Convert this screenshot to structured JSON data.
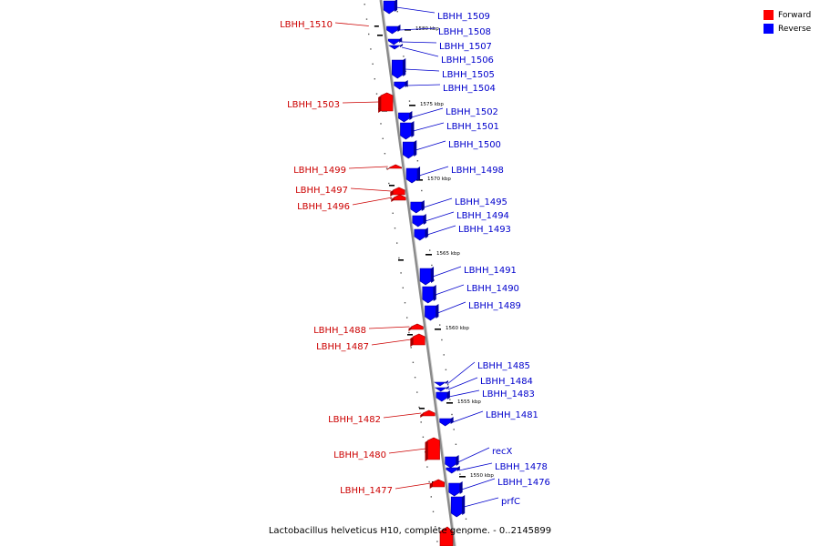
{
  "title": "Lactobacillus helveticus H10, complete genome. - 0..2145899",
  "legend": [
    {
      "label": "Forward",
      "color": "#ff0000"
    },
    {
      "label": "Reverse",
      "color": "#0000ff"
    }
  ],
  "colors": {
    "forward": "#ff0000",
    "reverse": "#0000ff",
    "forward_label": "#cc0000",
    "reverse_label": "#0000cc",
    "backbone": "#8a8a8a"
  },
  "ruler": [
    {
      "label": "1580 kbp"
    },
    {
      "label": "1575 kbp"
    },
    {
      "label": "1570 kbp"
    },
    {
      "label": "1565 kbp"
    },
    {
      "label": "1560 kbp"
    },
    {
      "label": "1555 kbp"
    },
    {
      "label": "1550 kbp"
    }
  ],
  "genes_reverse": [
    {
      "name": "LBHH_1509"
    },
    {
      "name": "LBHH_1508"
    },
    {
      "name": "LBHH_1507"
    },
    {
      "name": "LBHH_1506"
    },
    {
      "name": "LBHH_1505"
    },
    {
      "name": "LBHH_1504"
    },
    {
      "name": "LBHH_1502"
    },
    {
      "name": "LBHH_1501"
    },
    {
      "name": "LBHH_1500"
    },
    {
      "name": "LBHH_1498"
    },
    {
      "name": "LBHH_1495"
    },
    {
      "name": "LBHH_1494"
    },
    {
      "name": "LBHH_1493"
    },
    {
      "name": "LBHH_1491"
    },
    {
      "name": "LBHH_1490"
    },
    {
      "name": "LBHH_1489"
    },
    {
      "name": "LBHH_1485"
    },
    {
      "name": "LBHH_1484"
    },
    {
      "name": "LBHH_1483"
    },
    {
      "name": "LBHH_1481"
    },
    {
      "name": "recX"
    },
    {
      "name": "LBHH_1478"
    },
    {
      "name": "LBHH_1476"
    },
    {
      "name": "prfC"
    }
  ],
  "genes_forward": [
    {
      "name": "LBHH_1510"
    },
    {
      "name": "LBHH_1503"
    },
    {
      "name": "LBHH_1499"
    },
    {
      "name": "LBHH_1497"
    },
    {
      "name": "LBHH_1496"
    },
    {
      "name": "LBHH_1488"
    },
    {
      "name": "LBHH_1487"
    },
    {
      "name": "LBHH_1482"
    },
    {
      "name": "LBHH_1480"
    },
    {
      "name": "LBHH_1477"
    }
  ]
}
